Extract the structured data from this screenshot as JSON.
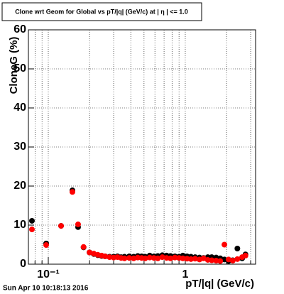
{
  "chart_data": {
    "type": "scatter",
    "title": "Clone wrt Geom for Global vs pT/|q| (GeV/c) at | η | <= 1.0",
    "xlabel": "pT/|q| (GeV/c)",
    "ylabel": "CloneG (%)",
    "footer": "Sun Apr 10 10:18:13 2016",
    "xlog": true,
    "grid": true,
    "xlim": [
      0.0716,
      3.26
    ],
    "ylim": [
      0,
      60
    ],
    "yticks": [
      0,
      10,
      20,
      30,
      40,
      50,
      60
    ],
    "xticks": [
      {
        "value": 0.1,
        "label": "10⁻¹"
      },
      1
    ],
    "xminor": [
      0.08,
      0.09,
      0.2,
      0.3,
      0.4,
      0.5,
      0.6,
      0.7,
      0.8,
      0.9,
      2,
      3
    ],
    "x": [
      0.076,
      0.0965,
      0.124,
      0.15,
      0.165,
      0.181,
      0.2,
      0.215,
      0.23,
      0.245,
      0.26,
      0.28,
      0.3,
      0.32,
      0.34,
      0.36,
      0.39,
      0.42,
      0.45,
      0.48,
      0.51,
      0.55,
      0.59,
      0.63,
      0.68,
      0.73,
      0.78,
      0.84,
      0.9,
      0.96,
      1.03,
      1.1,
      1.18,
      1.27,
      1.36,
      1.46,
      1.56,
      1.68,
      1.8,
      1.93,
      2.07,
      2.22,
      2.4,
      2.6,
      2.75
    ],
    "series": [
      {
        "color": "#000000",
        "values": [
          11.1,
          5.3,
          9.8,
          18.9,
          9.5,
          4.3,
          3.0,
          2.6,
          2.3,
          2.1,
          2.0,
          1.9,
          1.9,
          2.0,
          1.8,
          1.9,
          2.0,
          1.9,
          2.1,
          2.0,
          1.9,
          2.2,
          2.0,
          2.1,
          2.3,
          2.2,
          2.1,
          2.0,
          1.9,
          2.2,
          2.0,
          1.9,
          1.8,
          1.7,
          1.6,
          1.8,
          1.8,
          1.7,
          1.5,
          1.2,
          0.8,
          1.0,
          4.0,
          1.5,
          2.5
        ]
      },
      {
        "color": "#ff0000",
        "values": [
          8.9,
          4.9,
          9.8,
          18.5,
          10.2,
          4.4,
          3.0,
          2.7,
          2.4,
          2.2,
          2.0,
          1.8,
          1.7,
          1.8,
          1.6,
          1.5,
          1.6,
          1.5,
          1.7,
          1.6,
          1.5,
          1.7,
          1.6,
          1.5,
          1.8,
          1.6,
          1.5,
          1.7,
          1.6,
          1.5,
          1.4,
          1.3,
          1.4,
          1.2,
          1.5,
          1.1,
          1.0,
          0.9,
          0.8,
          5.0,
          1.2,
          0.9,
          1.3,
          1.8,
          2.2
        ]
      }
    ]
  }
}
